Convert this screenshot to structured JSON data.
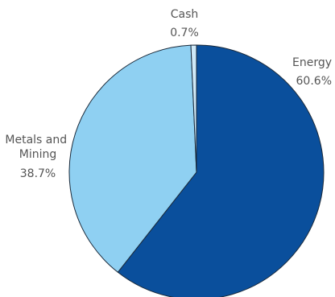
{
  "chart_data": {
    "type": "pie",
    "slices": [
      {
        "label": "Energy",
        "value": 60.6,
        "value_label": "60.6%",
        "color": "#0a4f9c"
      },
      {
        "label": "Metals and Mining",
        "value": 38.7,
        "value_label": "38.7%",
        "color": "#8fd0f2"
      },
      {
        "label": "Cash",
        "value": 0.7,
        "value_label": "0.7%",
        "color": "#cfe9f8"
      }
    ],
    "legend": "none",
    "start": "top, clockwise"
  }
}
